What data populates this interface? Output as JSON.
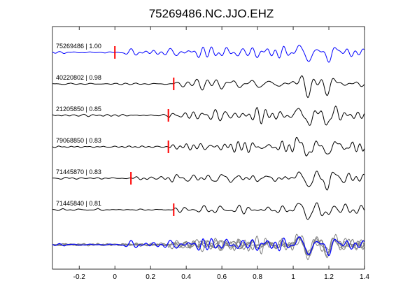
{
  "chart_data": {
    "type": "line",
    "title": "75269486.NC.JJO.EHZ",
    "xlabel": "",
    "ylabel": "",
    "xlim": [
      -0.35,
      1.4
    ],
    "x_ticks": [
      -0.2,
      0,
      0.2,
      0.4,
      0.6,
      0.8,
      1,
      1.2,
      1.4
    ],
    "x_tick_labels": [
      "-0.2",
      "0",
      "0.2",
      "0.4",
      "0.6",
      "0.8",
      "1",
      "1.2",
      "1.4"
    ],
    "grid": false,
    "traces": [
      {
        "label": "75269486 | 1.00",
        "event_id": "75269486",
        "correlation": 1.0,
        "pick_time": 0.0,
        "color": "#0000ff"
      },
      {
        "label": "40220802 | 0.98",
        "event_id": "40220802",
        "correlation": 0.98,
        "pick_time": 0.33,
        "color": "#000000"
      },
      {
        "label": "21205850 | 0.85",
        "event_id": "21205850",
        "correlation": 0.85,
        "pick_time": 0.3,
        "color": "#000000"
      },
      {
        "label": "79068850 | 0.83",
        "event_id": "79068850",
        "correlation": 0.83,
        "pick_time": 0.3,
        "color": "#000000"
      },
      {
        "label": "71445870 | 0.83",
        "event_id": "71445870",
        "correlation": 0.83,
        "pick_time": 0.09,
        "color": "#000000"
      },
      {
        "label": "71445840 | 0.81",
        "event_id": "71445840",
        "correlation": 0.81,
        "pick_time": 0.33,
        "color": "#000000"
      }
    ],
    "stack": {
      "reference_color": "#0000ff",
      "other_color": "#808080"
    },
    "pick_marker_color": "#ff0000"
  }
}
